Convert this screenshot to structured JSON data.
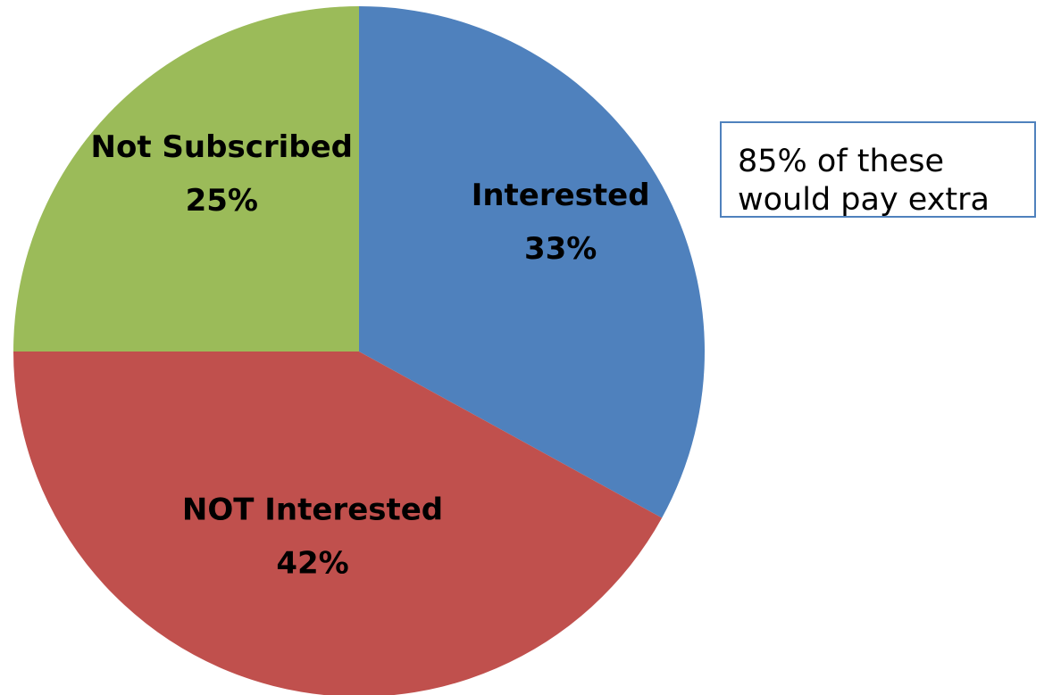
{
  "chart_data": {
    "type": "pie",
    "start_angle": "12 o'clock",
    "direction": "clockwise",
    "slices": [
      {
        "label": "Interested",
        "value": 33,
        "value_label": "33%",
        "color": "#4f81bd"
      },
      {
        "label": "NOT Interested",
        "value": 42,
        "value_label": "42%",
        "color": "#c0504d"
      },
      {
        "label": "Not Subscribed",
        "value": 25,
        "value_label": "25%",
        "color": "#9bbb59"
      }
    ],
    "annotation": {
      "lines": [
        "85% of these",
        "would pay extra"
      ],
      "border_color": "#4f81bd"
    }
  }
}
